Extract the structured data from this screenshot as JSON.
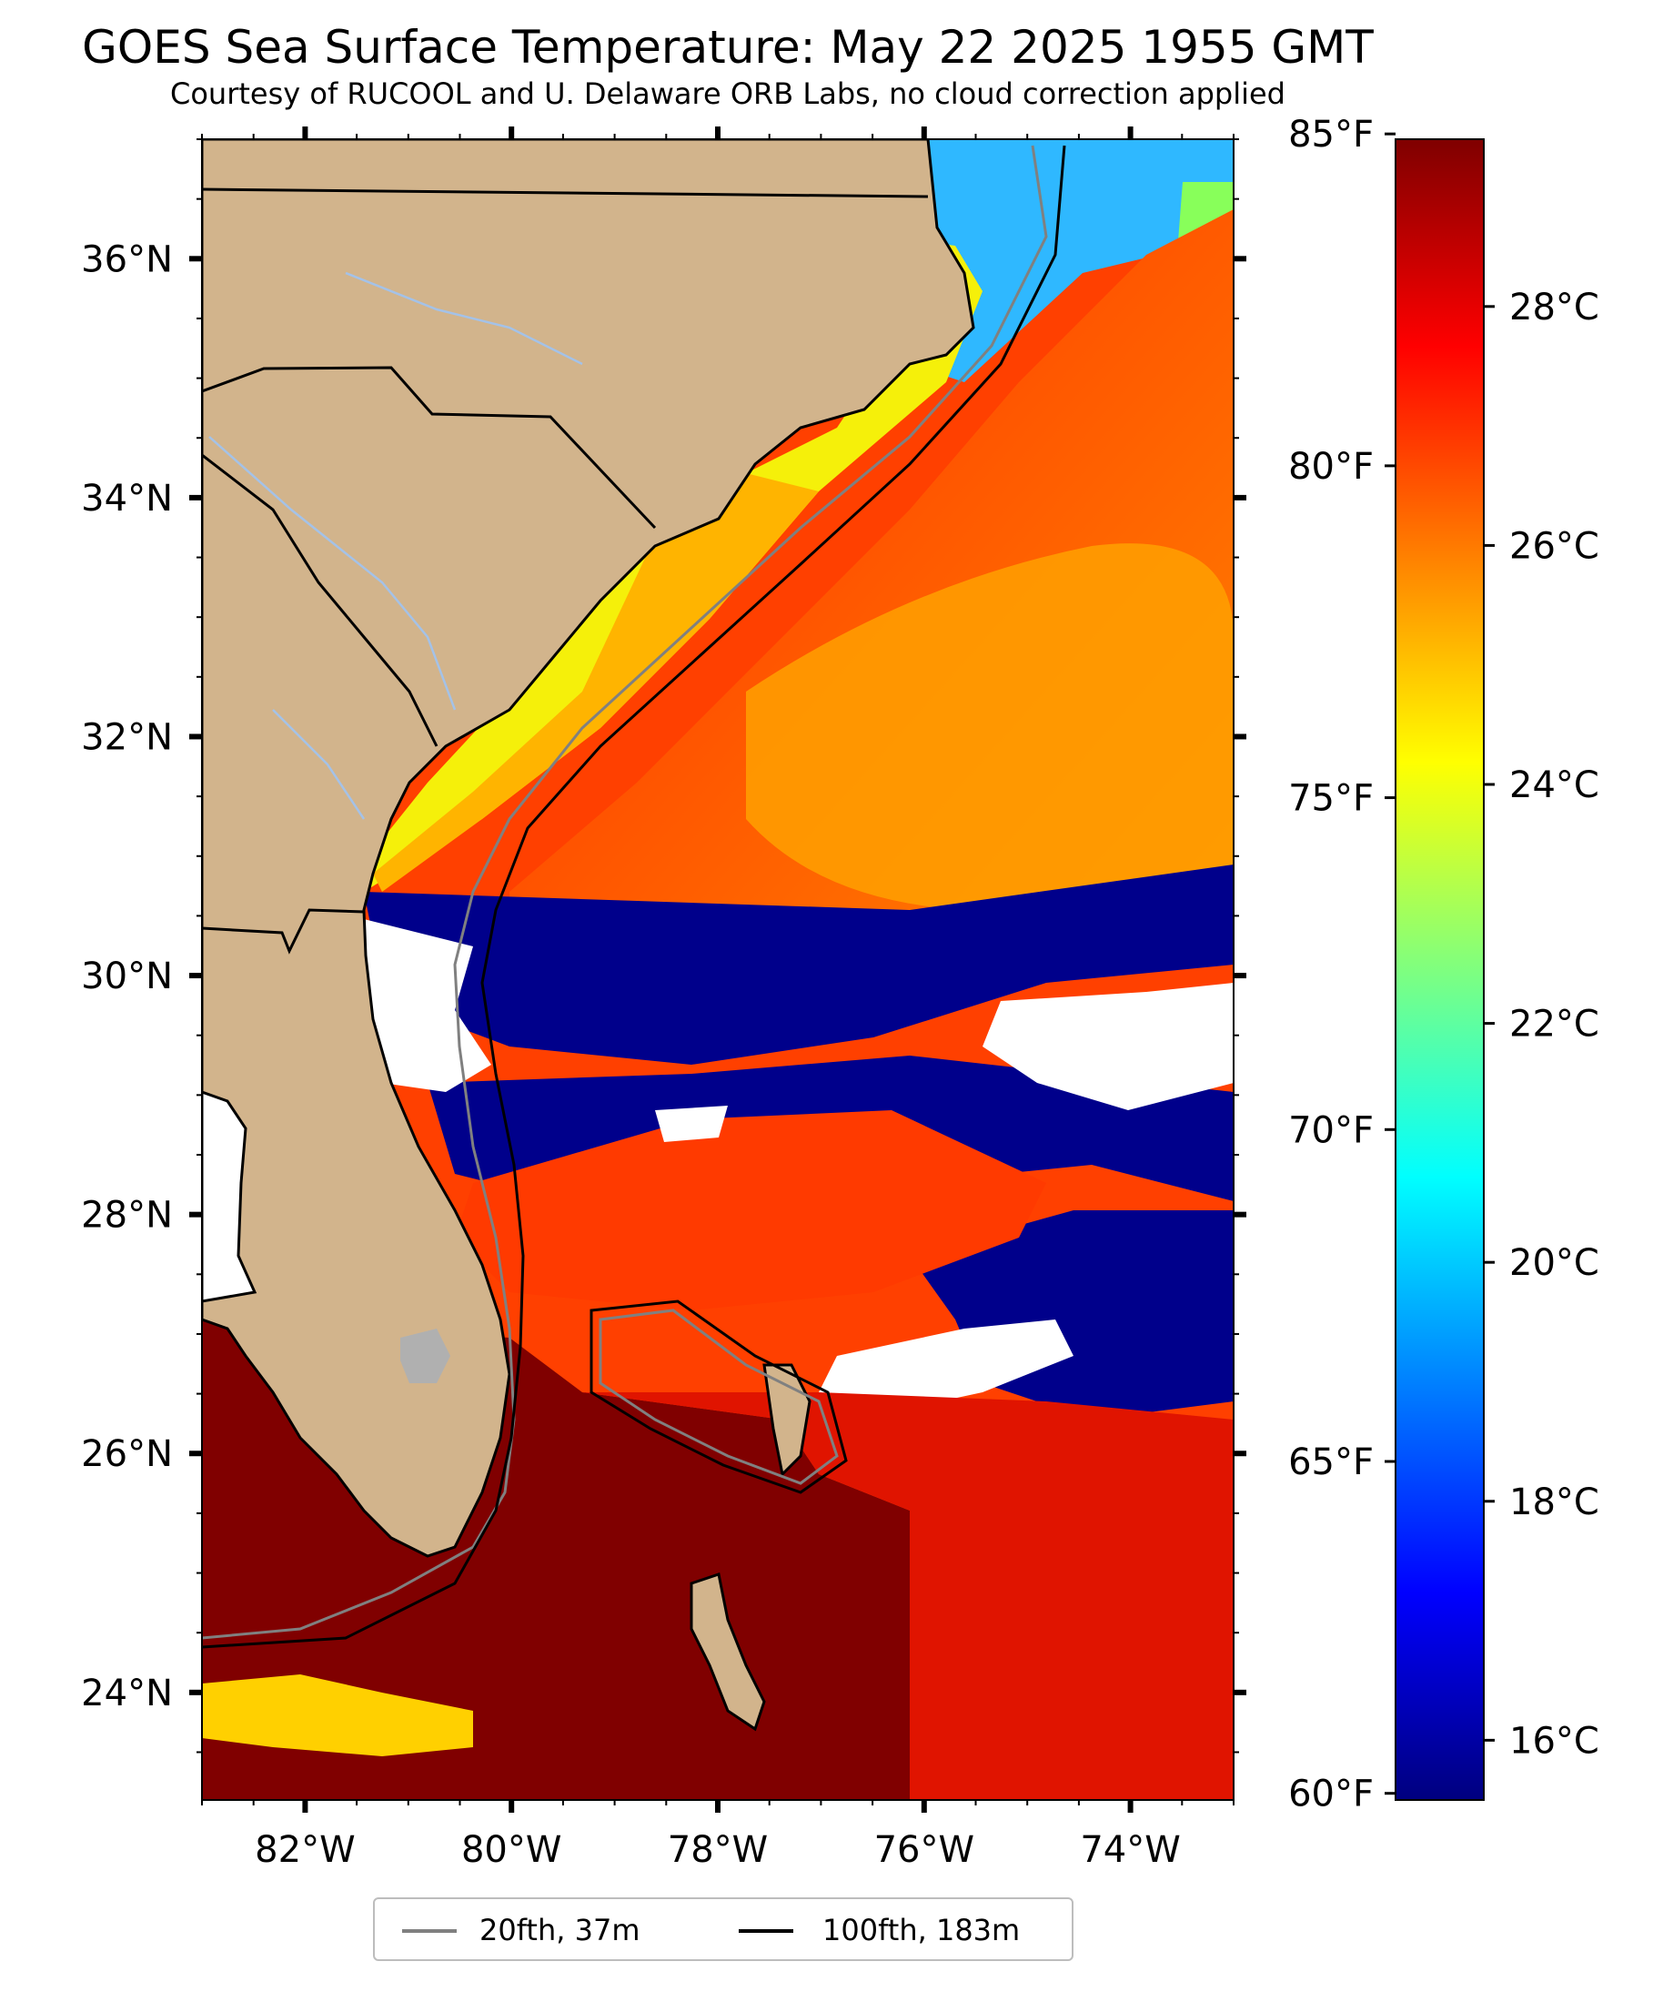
{
  "title": "GOES Sea Surface Temperature: May 22 2025 1955 GMT",
  "subtitle": "Courtesy of RUCOOL and U. Delaware ORB Labs, no cloud correction applied",
  "map": {
    "lon_range": [
      -83.0,
      -73.0
    ],
    "lat_range": [
      23.1,
      37.0
    ],
    "lon_ticks": [
      {
        "value": -82,
        "label": "82°W"
      },
      {
        "value": -80,
        "label": "80°W"
      },
      {
        "value": -78,
        "label": "78°W"
      },
      {
        "value": -76,
        "label": "76°W"
      },
      {
        "value": -74,
        "label": "74°W"
      }
    ],
    "lat_ticks": [
      {
        "value": 24,
        "label": "24°N"
      },
      {
        "value": 26,
        "label": "26°N"
      },
      {
        "value": 28,
        "label": "28°N"
      },
      {
        "value": 30,
        "label": "30°N"
      },
      {
        "value": 32,
        "label": "32°N"
      },
      {
        "value": 34,
        "label": "34°N"
      },
      {
        "value": 36,
        "label": "36°N"
      }
    ],
    "land_color": "#d2b48c",
    "cloud_color": "#ffffff",
    "isobath_colors": {
      "20fth": "#808080",
      "100fth": "#000000"
    }
  },
  "colorbar": {
    "celsius_range": [
      15.5,
      29.4
    ],
    "colors": [
      "#00007f",
      "#0000ff",
      "#007fff",
      "#00ffff",
      "#7fff7f",
      "#ffff00",
      "#ff7f00",
      "#ff0000",
      "#7f0000"
    ],
    "celsius_ticks": [
      {
        "value": 16,
        "label": "16°C"
      },
      {
        "value": 18,
        "label": "18°C"
      },
      {
        "value": 20,
        "label": "20°C"
      },
      {
        "value": 22,
        "label": "22°C"
      },
      {
        "value": 24,
        "label": "24°C"
      },
      {
        "value": 26,
        "label": "26°C"
      },
      {
        "value": 28,
        "label": "28°C"
      }
    ],
    "fahrenheit_ticks": [
      {
        "value": 60,
        "label": "60°F"
      },
      {
        "value": 65,
        "label": "65°F"
      },
      {
        "value": 70,
        "label": "70°F"
      },
      {
        "value": 75,
        "label": "75°F"
      },
      {
        "value": 80,
        "label": "80°F"
      },
      {
        "value": 85,
        "label": "85°F"
      }
    ]
  },
  "legend": {
    "items": [
      {
        "label": "20fth, 37m",
        "color": "#808080"
      },
      {
        "label": "100fth, 183m",
        "color": "#000000"
      }
    ]
  }
}
